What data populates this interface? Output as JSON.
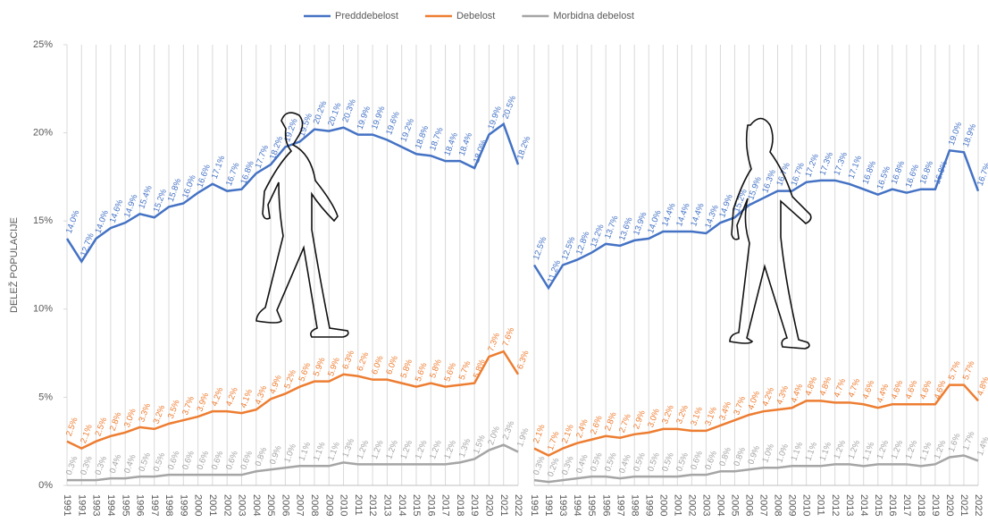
{
  "chart_data": [
    {
      "type": "line",
      "ylabel": "DELEŽ POPULACIJE",
      "categories": [
        "1991",
        "1991",
        "1993",
        "1994",
        "1995",
        "1996",
        "1997",
        "1998",
        "1999",
        "2000",
        "2001",
        "2002",
        "2003",
        "2004",
        "2005",
        "2006",
        "2007",
        "2008",
        "2009",
        "2010",
        "2011",
        "2012",
        "2013",
        "2014",
        "2015",
        "2016",
        "2017",
        "2018",
        "2019",
        "2020",
        "2021",
        "2022"
      ],
      "ylim": [
        0,
        25
      ],
      "yticks": [
        {
          "value": 0,
          "label": "0%"
        },
        {
          "value": 5,
          "label": "5%"
        },
        {
          "value": 10,
          "label": "10%"
        },
        {
          "value": 15,
          "label": "15%"
        },
        {
          "value": 20,
          "label": "20%"
        },
        {
          "value": 25,
          "label": "25%"
        }
      ],
      "legend": "top",
      "series": [
        {
          "name": "Predddebelost",
          "color": "#4472c4",
          "values": [
            14.0,
            12.7,
            14.0,
            14.6,
            14.9,
            15.4,
            15.2,
            15.8,
            16.0,
            16.6,
            17.1,
            16.7,
            16.8,
            17.7,
            18.2,
            19.2,
            19.5,
            20.2,
            20.1,
            20.3,
            19.9,
            19.9,
            19.6,
            19.2,
            18.8,
            18.7,
            18.4,
            18.4,
            18.0,
            19.9,
            20.5,
            18.2
          ],
          "value_labels": [
            "14.0%",
            "12.7%",
            "14.0%",
            "14.6%",
            "14.9%",
            "15.4%",
            "15.2%",
            "15.8%",
            "16.0%",
            "16.6%",
            "17.1%",
            "16.7%",
            "16.8%",
            "17.7%",
            "18.2%",
            "19.2%",
            "19.5%",
            "20.2%",
            "20.1%",
            "20.3%",
            "19.9%",
            "19.9%",
            "19.6%",
            "19.2%",
            "18.8%",
            "18.7%",
            "18.4%",
            "18.4%",
            "18.0%",
            "19.9%",
            "20.5%",
            "18.2%"
          ]
        },
        {
          "name": "Debelost",
          "color": "#ed7d31",
          "values": [
            2.5,
            2.1,
            2.5,
            2.8,
            3.0,
            3.3,
            3.2,
            3.5,
            3.7,
            3.9,
            4.2,
            4.2,
            4.1,
            4.3,
            4.9,
            5.2,
            5.6,
            5.9,
            5.9,
            6.3,
            6.2,
            6.0,
            6.0,
            5.8,
            5.6,
            5.8,
            5.6,
            5.7,
            5.8,
            7.3,
            7.6,
            6.3
          ],
          "value_labels": [
            "2.5%",
            "2.1%",
            "2.5%",
            "2.8%",
            "3.0%",
            "3.3%",
            "3.2%",
            "3.5%",
            "3.7%",
            "3.9%",
            "4.2%",
            "4.2%",
            "4.1%",
            "4.3%",
            "4.9%",
            "5.2%",
            "5.6%",
            "5.9%",
            "5.9%",
            "6.3%",
            "6.2%",
            "6.0%",
            "6.0%",
            "5.8%",
            "5.6%",
            "5.8%",
            "5.6%",
            "5.7%",
            "5.8%",
            "7.3%",
            "7.6%",
            "6.3%"
          ]
        },
        {
          "name": "Morbidna debelost",
          "color": "#a5a5a5",
          "values": [
            0.3,
            0.3,
            0.3,
            0.4,
            0.4,
            0.5,
            0.5,
            0.6,
            0.6,
            0.6,
            0.6,
            0.6,
            0.6,
            0.8,
            0.9,
            1.0,
            1.1,
            1.1,
            1.1,
            1.3,
            1.2,
            1.2,
            1.2,
            1.2,
            1.2,
            1.2,
            1.2,
            1.3,
            1.5,
            2.0,
            2.3,
            1.9
          ],
          "value_labels": [
            "0.3%",
            "0.3%",
            "0.3%",
            "0.4%",
            "0.4%",
            "0.5%",
            "0.5%",
            "0.6%",
            "0.6%",
            "0.6%",
            "0.6%",
            "0.6%",
            "0.6%",
            "0.8%",
            "0.9%",
            "1.0%",
            "1.1%",
            "1.1%",
            "1.1%",
            "1.3%",
            "1.2%",
            "1.2%",
            "1.2%",
            "1.2%",
            "1.2%",
            "1.2%",
            "1.2%",
            "1.3%",
            "1.5%",
            "2.0%",
            "2.3%",
            "1.9%"
          ]
        }
      ]
    },
    {
      "type": "line",
      "categories": [
        "1991",
        "1991",
        "1993",
        "1994",
        "1995",
        "1996",
        "1997",
        "1998",
        "1999",
        "2000",
        "2001",
        "2002",
        "2003",
        "2004",
        "2005",
        "2006",
        "2007",
        "2008",
        "2009",
        "2010",
        "2011",
        "2012",
        "2013",
        "2014",
        "2015",
        "2016",
        "2017",
        "2018",
        "2019",
        "2020",
        "2021",
        "2022"
      ],
      "ylim": [
        0,
        25
      ],
      "series": [
        {
          "name": "Predddebelost",
          "color": "#4472c4",
          "values": [
            12.5,
            11.2,
            12.5,
            12.8,
            13.2,
            13.7,
            13.6,
            13.9,
            14.0,
            14.4,
            14.4,
            14.4,
            14.3,
            14.9,
            15.2,
            15.9,
            16.3,
            16.7,
            16.7,
            17.2,
            17.3,
            17.3,
            17.1,
            16.8,
            16.5,
            16.8,
            16.6,
            16.8,
            16.8,
            19.0,
            18.9,
            16.7
          ],
          "value_labels": [
            "12.5%",
            "11.2%",
            "12.5%",
            "12.8%",
            "13.2%",
            "13.7%",
            "13.6%",
            "13.9%",
            "14.0%",
            "14.4%",
            "14.4%",
            "14.4%",
            "14.3%",
            "14.9%",
            "15.2%",
            "15.9%",
            "16.3%",
            "16.7%",
            "16.7%",
            "17.2%",
            "17.3%",
            "17.3%",
            "17.1%",
            "16.8%",
            "16.5%",
            "16.8%",
            "16.6%",
            "16.8%",
            "16.8%",
            "19.0%",
            "18.9%",
            "16.7%"
          ]
        },
        {
          "name": "Debelost",
          "color": "#ed7d31",
          "values": [
            2.1,
            1.7,
            2.1,
            2.4,
            2.6,
            2.8,
            2.7,
            2.9,
            3.0,
            3.2,
            3.2,
            3.1,
            3.1,
            3.4,
            3.7,
            4.0,
            4.2,
            4.3,
            4.4,
            4.8,
            4.8,
            4.7,
            4.7,
            4.6,
            4.4,
            4.6,
            4.6,
            4.6,
            4.6,
            5.7,
            5.7,
            4.8
          ],
          "value_labels": [
            "2.1%",
            "1.7%",
            "2.1%",
            "2.4%",
            "2.6%",
            "2.8%",
            "2.7%",
            "2.9%",
            "3.0%",
            "3.2%",
            "3.2%",
            "3.1%",
            "3.1%",
            "3.4%",
            "3.7%",
            "4.0%",
            "4.2%",
            "4.3%",
            "4.4%",
            "4.8%",
            "4.8%",
            "4.7%",
            "4.7%",
            "4.6%",
            "4.4%",
            "4.6%",
            "4.6%",
            "4.6%",
            "4.6%",
            "5.7%",
            "5.7%",
            "4.8%"
          ]
        },
        {
          "name": "Morbidna debelost",
          "color": "#a5a5a5",
          "values": [
            0.3,
            0.2,
            0.3,
            0.4,
            0.5,
            0.5,
            0.4,
            0.5,
            0.5,
            0.5,
            0.5,
            0.6,
            0.6,
            0.8,
            0.8,
            0.9,
            1.0,
            1.0,
            1.1,
            1.1,
            1.1,
            1.2,
            1.2,
            1.1,
            1.2,
            1.2,
            1.2,
            1.1,
            1.2,
            1.6,
            1.7,
            1.4
          ],
          "value_labels": [
            "0.3%",
            "0.2%",
            "0.3%",
            "0.4%",
            "0.5%",
            "0.5%",
            "0.4%",
            "0.5%",
            "0.5%",
            "0.5%",
            "0.5%",
            "0.6%",
            "0.6%",
            "0.8%",
            "0.8%",
            "0.9%",
            "1.0%",
            "1.0%",
            "1.1%",
            "1.1%",
            "1.1%",
            "1.2%",
            "1.2%",
            "1.1%",
            "1.2%",
            "1.2%",
            "1.2%",
            "1.1%",
            "1.2%",
            "1.6%",
            "1.7%",
            "1.4%"
          ]
        }
      ]
    }
  ]
}
